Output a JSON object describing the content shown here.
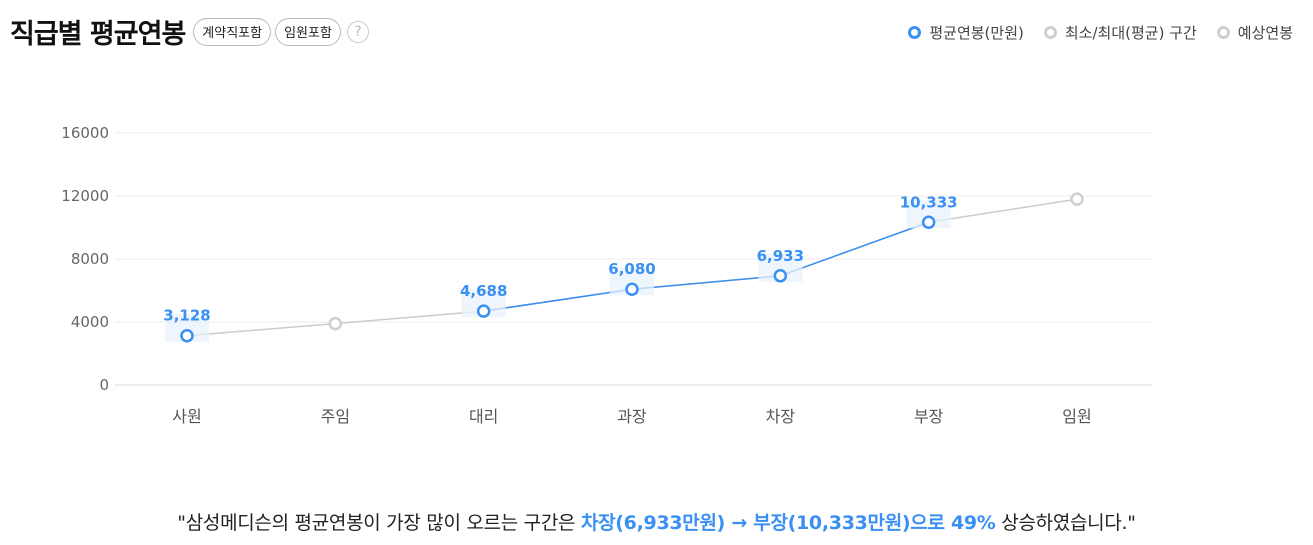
{
  "header": {
    "title": "직급별 평균연봉",
    "chips": [
      "계약직포함",
      "임원포함"
    ],
    "help_icon": "?"
  },
  "legend": [
    {
      "label": "평균연봉(만원)",
      "color": "#3a8ff3"
    },
    {
      "label": "최소/최대(평균) 구간",
      "color": "#cfcfcf"
    },
    {
      "label": "예상연봉",
      "color": "#cfcfcf"
    }
  ],
  "chart_data": {
    "type": "line",
    "title": "직급별 평균연봉",
    "categories": [
      "사원",
      "주임",
      "대리",
      "과장",
      "차장",
      "부장",
      "임원"
    ],
    "y_ticks": [
      "0",
      "4000",
      "8000",
      "12000",
      "16000"
    ],
    "ylim": [
      0,
      16000
    ],
    "grid": true,
    "legend_position": "top-right",
    "series": [
      {
        "name": "평균연봉(만원)",
        "color": "#3a8ff3",
        "values": [
          3128,
          null,
          4688,
          6080,
          6933,
          10333,
          null
        ],
        "labels": [
          "3,128",
          "",
          "4,688",
          "6,080",
          "6,933",
          "10,333",
          ""
        ]
      },
      {
        "name": "예상연봉",
        "color": "#cfcfcf",
        "values": [
          null,
          3900,
          null,
          null,
          null,
          null,
          11800
        ]
      }
    ]
  },
  "footer": {
    "prefix": "\"삼성메디슨의 평균연봉이 가장 많이 오르는 구간은 ",
    "highlight": "차장(6,933만원) → 부장(10,333만원)으로 49%",
    "suffix": " 상승하였습니다.\""
  }
}
